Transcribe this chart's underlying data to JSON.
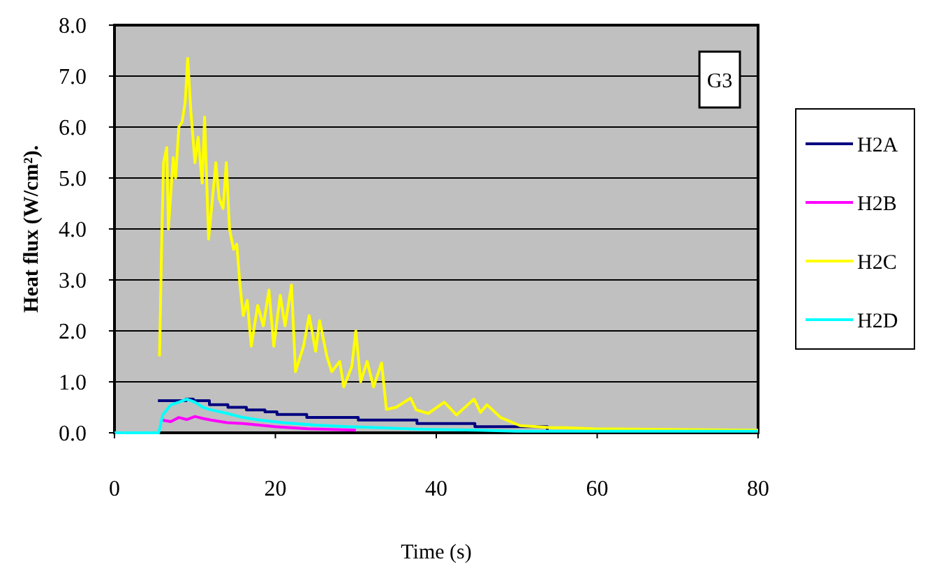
{
  "chart_data": {
    "type": "line",
    "xlabel": "Time (s)",
    "ylabel": "Heat flux (W/cm²).",
    "annotations": [
      "G3"
    ],
    "xlim": [
      0,
      80
    ],
    "xticks": [
      0,
      20,
      40,
      60,
      80
    ],
    "ylim": [
      0,
      8
    ],
    "yticks": [
      {
        "value": 0,
        "label": "0.0"
      },
      {
        "value": 1,
        "label": "1.0"
      },
      {
        "value": 2,
        "label": "2.0"
      },
      {
        "value": 3,
        "label": "3.0"
      },
      {
        "value": 4,
        "label": "4.0"
      },
      {
        "value": 5,
        "label": "5.0"
      },
      {
        "value": 6,
        "label": "6.0"
      },
      {
        "value": 7,
        "label": "7.0"
      },
      {
        "value": 8,
        "label": "8.0"
      }
    ],
    "grid": "y",
    "legend": "right",
    "series": [
      {
        "name": "H2A",
        "color": "#000080",
        "type": "step",
        "x": [
          5.4,
          8.9,
          9.8,
          11.8,
          14.1,
          16.4,
          18.7,
          20.2,
          23.9,
          30.3,
          37.6,
          44.8,
          53.8
        ],
        "values": [
          0.63,
          0.66,
          0.63,
          0.55,
          0.5,
          0.45,
          0.41,
          0.36,
          0.3,
          0.25,
          0.18,
          0.12,
          0.05
        ]
      },
      {
        "name": "H2B",
        "color": "#ff00ff",
        "x": [
          5.9,
          7,
          8,
          9,
          10,
          11,
          12,
          14,
          16,
          18,
          20,
          24,
          30
        ],
        "values": [
          0.25,
          0.22,
          0.3,
          0.26,
          0.32,
          0.28,
          0.25,
          0.2,
          0.18,
          0.15,
          0.12,
          0.08,
          0.05
        ]
      },
      {
        "name": "H2C",
        "color": "#ffff00",
        "x": [
          5.6,
          5.9,
          6.1,
          6.5,
          6.7,
          7.3,
          7.6,
          8,
          8.4,
          8.8,
          9.1,
          9.5,
          10,
          10.4,
          10.9,
          11.2,
          11.7,
          12.6,
          13,
          13.5,
          13.9,
          14.3,
          14.8,
          15.2,
          15.6,
          16,
          16.5,
          17,
          17.8,
          18.5,
          19.2,
          19.8,
          20.6,
          21.2,
          22,
          22.5,
          23.5,
          24.2,
          25,
          25.5,
          26.4,
          27,
          28,
          28.5,
          29.5,
          30,
          30.6,
          31.4,
          32.2,
          33.2,
          33.8,
          35,
          36.8,
          37.5,
          39,
          41,
          42.5,
          44.7,
          45.5,
          46.3,
          48,
          50.4,
          54.4,
          56,
          59.6,
          80
        ],
        "values": [
          1.5,
          4.0,
          5.3,
          5.6,
          4.0,
          5.4,
          5.0,
          6.0,
          6.1,
          6.5,
          7.35,
          6.3,
          5.3,
          5.8,
          4.9,
          6.2,
          3.8,
          5.3,
          4.6,
          4.4,
          5.3,
          4.0,
          3.6,
          3.7,
          2.9,
          2.3,
          2.6,
          1.7,
          2.5,
          2.1,
          2.8,
          1.7,
          2.7,
          2.1,
          2.9,
          1.2,
          1.7,
          2.3,
          1.6,
          2.2,
          1.5,
          1.2,
          1.4,
          0.9,
          1.3,
          2.0,
          1.0,
          1.4,
          0.9,
          1.37,
          0.46,
          0.5,
          0.68,
          0.45,
          0.38,
          0.6,
          0.35,
          0.66,
          0.4,
          0.55,
          0.3,
          0.14,
          0.1,
          0.1,
          0.08,
          0.05
        ]
      },
      {
        "name": "H2D",
        "color": "#00ffff",
        "x": [
          0,
          5.5,
          6,
          7,
          8,
          9,
          10,
          11,
          12,
          14,
          16,
          18,
          21,
          25,
          29,
          33,
          38,
          45,
          50,
          80
        ],
        "values": [
          0,
          0,
          0.35,
          0.55,
          0.6,
          0.66,
          0.6,
          0.5,
          0.45,
          0.38,
          0.3,
          0.25,
          0.2,
          0.15,
          0.12,
          0.1,
          0.07,
          0.05,
          0.03,
          0.03
        ]
      }
    ]
  }
}
